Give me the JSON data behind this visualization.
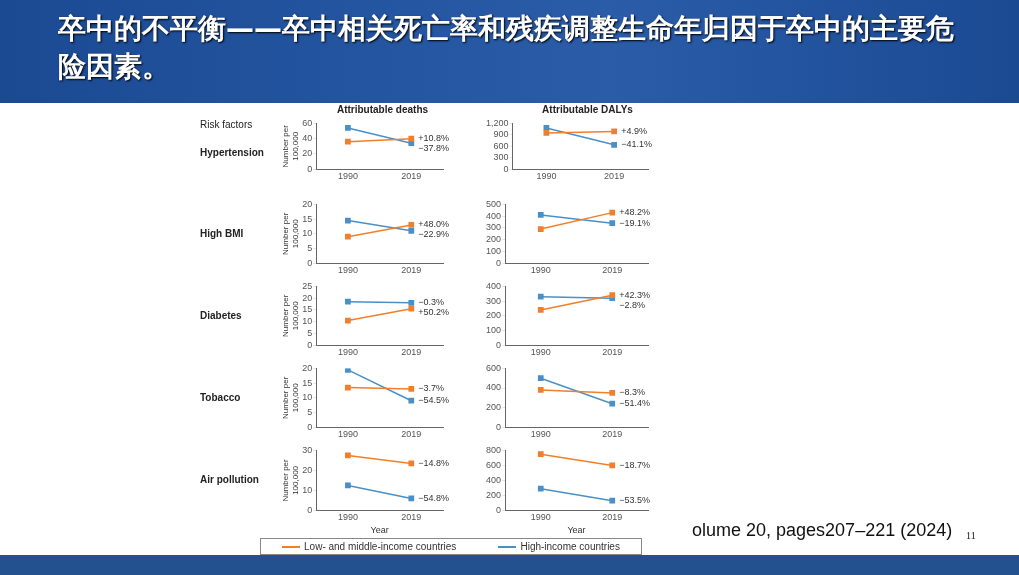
{
  "chart_data": [
    {
      "type": "line",
      "title": "卒中的不平衡——卒中相关死亡率和残疾调整生命年归因于卒中的主要危险因素。",
      "subtitle": "Attributable deaths",
      "ylabel": "Number per 100,000",
      "categories": [
        "1990",
        "2019"
      ],
      "ylim": [
        0,
        60
      ],
      "yticks": [
        0,
        20,
        40,
        60
      ],
      "grid": false,
      "marker": "square",
      "legend": false,
      "annotations": [
        "Risk factors",
        "Hypertension",
        {
          "text": "+10.8%",
          "x": "2019",
          "y": 40
        },
        {
          "text": "−37.8%",
          "x": "2019",
          "y": 34
        }
      ],
      "series": [
        {
          "color": "#f07f2b",
          "values": [
            36,
            40
          ]
        },
        {
          "color": "#4a90c8",
          "values": [
            54,
            34
          ]
        }
      ]
    },
    {
      "type": "line",
      "subtitle": "Attributable DALYs",
      "categories": [
        "1990",
        "2019"
      ],
      "ylim": [
        0,
        1200
      ],
      "yticks": [
        0,
        300,
        600,
        900,
        {
          "value": 1200,
          "label": "1,200"
        }
      ],
      "grid": false,
      "marker": "square",
      "legend": false,
      "annotations": [
        {
          "text": "+4.9%",
          "x": "2019",
          "y": 990
        },
        {
          "text": "−41.1%",
          "x": "2019",
          "y": 640
        }
      ],
      "series": [
        {
          "color": "#f07f2b",
          "values": [
            950,
            990
          ]
        },
        {
          "color": "#4a90c8",
          "values": [
            1080,
            640
          ]
        }
      ]
    },
    {
      "type": "line",
      "ylabel": "Number per 100,000",
      "categories": [
        "1990",
        "2019"
      ],
      "ylim": [
        0,
        20
      ],
      "yticks": [
        0,
        5,
        10,
        15,
        20
      ],
      "grid": false,
      "marker": "square",
      "legend": false,
      "annotations": [
        "High BMI",
        {
          "text": "+48.0%",
          "x": "2019",
          "y": 13
        },
        {
          "text": "−22.9%",
          "x": "2019",
          "y": 11
        }
      ],
      "series": [
        {
          "color": "#f07f2b",
          "values": [
            9,
            13
          ]
        },
        {
          "color": "#4a90c8",
          "values": [
            14.5,
            11
          ]
        }
      ]
    },
    {
      "type": "line",
      "categories": [
        "1990",
        "2019"
      ],
      "ylim": [
        0,
        500
      ],
      "yticks": [
        0,
        100,
        200,
        300,
        400,
        500
      ],
      "grid": false,
      "marker": "square",
      "legend": false,
      "annotations": [
        {
          "text": "+48.2%",
          "x": "2019",
          "y": 430
        },
        {
          "text": "−19.1%",
          "x": "2019",
          "y": 340
        }
      ],
      "series": [
        {
          "color": "#f07f2b",
          "values": [
            290,
            430
          ]
        },
        {
          "color": "#4a90c8",
          "values": [
            410,
            340
          ]
        }
      ]
    },
    {
      "type": "line",
      "ylabel": "Number per 100,000",
      "categories": [
        "1990",
        "2019"
      ],
      "ylim": [
        0,
        25
      ],
      "yticks": [
        0,
        5,
        10,
        15,
        20,
        25
      ],
      "grid": false,
      "marker": "square",
      "legend": false,
      "annotations": [
        "Diabetes",
        {
          "text": "−0.3%",
          "x": "2019",
          "y": 18
        },
        {
          "text": "+50.2%",
          "x": "2019",
          "y": 15.5
        }
      ],
      "series": [
        {
          "color": "#f07f2b",
          "values": [
            10.5,
            15.5
          ]
        },
        {
          "color": "#4a90c8",
          "values": [
            18.5,
            18
          ]
        }
      ]
    },
    {
      "type": "line",
      "categories": [
        "1990",
        "2019"
      ],
      "ylim": [
        0,
        400
      ],
      "yticks": [
        0,
        100,
        200,
        300,
        400
      ],
      "grid": false,
      "marker": "square",
      "legend": false,
      "annotations": [
        {
          "text": "+42.3%",
          "x": "2019",
          "y": 340
        },
        {
          "text": "−2.8%",
          "x": "2019",
          "y": 320
        }
      ],
      "series": [
        {
          "color": "#f07f2b",
          "values": [
            240,
            340
          ]
        },
        {
          "color": "#4a90c8",
          "values": [
            330,
            320
          ]
        }
      ]
    },
    {
      "type": "line",
      "ylabel": "Number per 100,000",
      "categories": [
        "1990",
        "2019"
      ],
      "ylim": [
        0,
        20
      ],
      "yticks": [
        0,
        5,
        10,
        15,
        20
      ],
      "grid": false,
      "marker": "square",
      "legend": false,
      "annotations": [
        "Tobacco",
        {
          "text": "−3.7%",
          "x": "2019",
          "y": 13
        },
        {
          "text": "−54.5%",
          "x": "2019",
          "y": 9
        }
      ],
      "series": [
        {
          "color": "#f07f2b",
          "values": [
            13.5,
            13
          ]
        },
        {
          "color": "#4a90c8",
          "values": [
            19.5,
            9
          ]
        }
      ]
    },
    {
      "type": "line",
      "categories": [
        "1990",
        "2019"
      ],
      "ylim": [
        0,
        600
      ],
      "yticks": [
        0,
        200,
        400,
        600
      ],
      "grid": false,
      "marker": "square",
      "legend": false,
      "annotations": [
        {
          "text": "−8.3%",
          "x": "2019",
          "y": 350
        },
        {
          "text": "−51.4%",
          "x": "2019",
          "y": 240
        }
      ],
      "series": [
        {
          "color": "#f07f2b",
          "values": [
            380,
            350
          ]
        },
        {
          "color": "#4a90c8",
          "values": [
            500,
            240
          ]
        }
      ]
    },
    {
      "type": "line",
      "ylabel": "Number per 100,000",
      "xlabel": "Year",
      "categories": [
        "1990",
        "2019"
      ],
      "ylim": [
        0,
        30
      ],
      "yticks": [
        0,
        10,
        20,
        30
      ],
      "grid": false,
      "marker": "square",
      "legend": false,
      "annotations": [
        "Air pollution",
        {
          "text": "−14.8%",
          "x": "2019",
          "y": 23.5
        },
        {
          "text": "−54.8%",
          "x": "2019",
          "y": 6
        }
      ],
      "series": [
        {
          "color": "#f07f2b",
          "values": [
            27.5,
            23.5
          ]
        },
        {
          "color": "#4a90c8",
          "values": [
            12.5,
            6
          ]
        }
      ]
    },
    {
      "type": "line",
      "xlabel": "Year",
      "categories": [
        "1990",
        "2019"
      ],
      "ylim": [
        0,
        800
      ],
      "yticks": [
        0,
        200,
        400,
        600,
        800
      ],
      "grid": false,
      "marker": "square",
      "legend": "bottom",
      "annotations": [
        "olume 20, pages207–221 (2024)",
        "11",
        {
          "text": "−18.7%",
          "x": "2019",
          "y": 600
        },
        {
          "text": "−53.5%",
          "x": "2019",
          "y": 130
        }
      ],
      "series": [
        {
          "name": "Low- and middle-income countries",
          "color": "#f07f2b",
          "values": [
            750,
            600
          ]
        },
        {
          "name": "High-income countries",
          "color": "#4a90c8",
          "values": [
            290,
            130
          ]
        }
      ]
    }
  ]
}
